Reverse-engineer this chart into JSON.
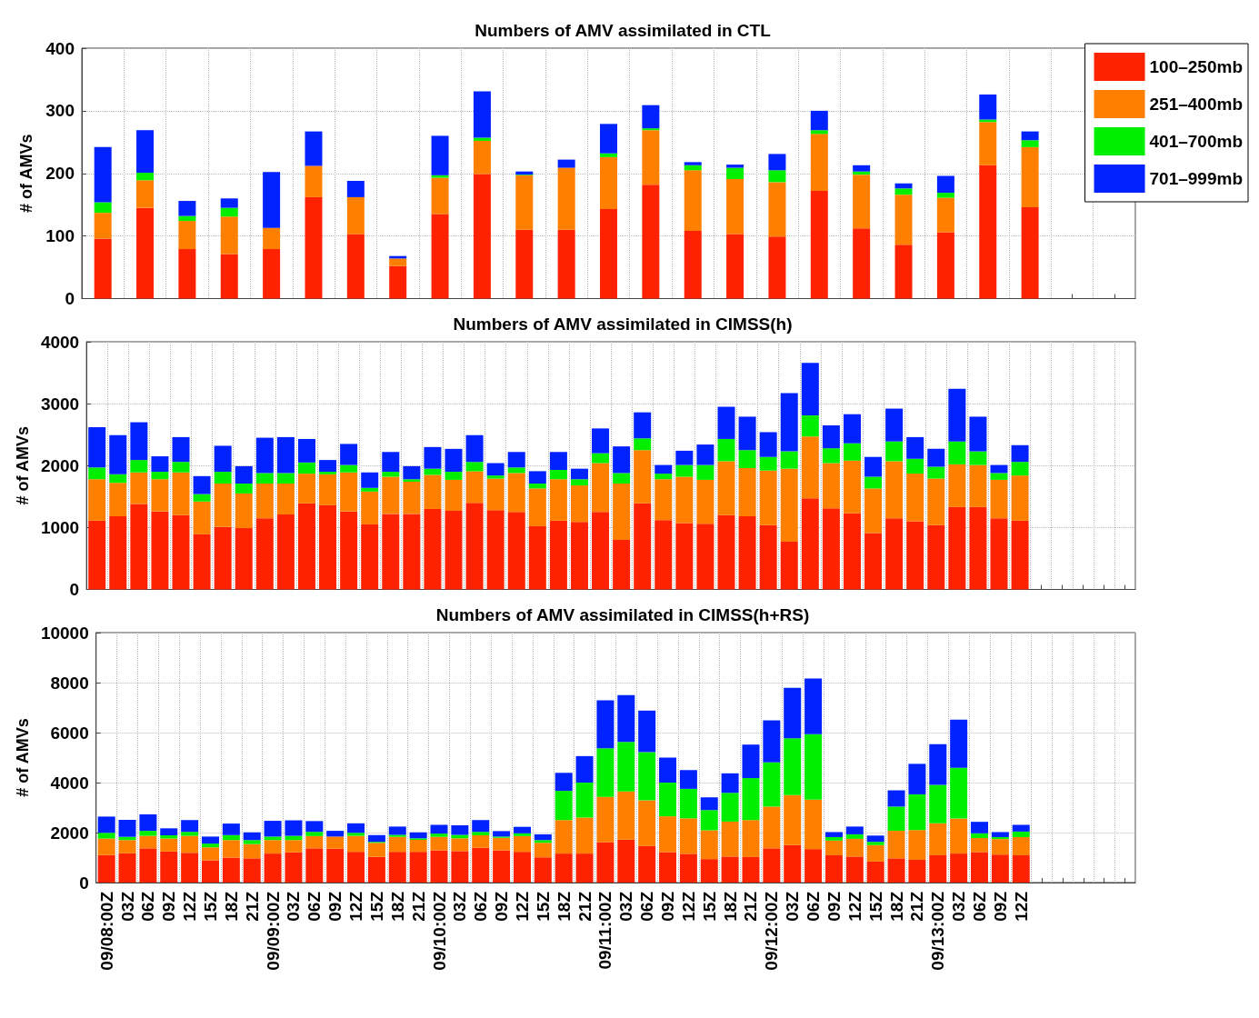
{
  "chart_data": [
    {
      "type": "bar",
      "title": "Numbers of AMV assimilated in CTL",
      "ylabel": "# of AMVs",
      "stacked": true,
      "grid": true,
      "legend": "top right",
      "tick_labels": "y",
      "ylim": [
        0,
        400
      ],
      "yticks": [
        0,
        100,
        200,
        300,
        400
      ],
      "categories": [
        null,
        null,
        null,
        null,
        null,
        null,
        null,
        null,
        null,
        null,
        null,
        null,
        null,
        null,
        null,
        null,
        null,
        null,
        null,
        null,
        null,
        null,
        null
      ],
      "series": [
        {
          "name": "100–250mb",
          "color": "#ff2200",
          "values": [
            96,
            145,
            79,
            71,
            79,
            162,
            103,
            52,
            135,
            199,
            110,
            110,
            143,
            182,
            108,
            103,
            99,
            172,
            112,
            86,
            106,
            213,
            146
          ]
        },
        {
          "name": "251–400mb",
          "color": "#ff7f00",
          "values": [
            41,
            44,
            45,
            60,
            34,
            50,
            59,
            12,
            58,
            53,
            87,
            99,
            83,
            87,
            97,
            88,
            87,
            91,
            86,
            80,
            55,
            69,
            96
          ]
        },
        {
          "name": "401–700mb",
          "color": "#00ee00",
          "values": [
            17,
            12,
            8,
            14,
            0,
            null,
            0,
            0,
            4,
            5,
            1,
            0,
            6,
            3,
            8,
            18,
            19,
            6,
            5,
            10,
            8,
            4,
            11
          ]
        },
        {
          "name": "701–999mb",
          "color": "#0022ff",
          "values": [
            88,
            68,
            24,
            15,
            89,
            55,
            26,
            4,
            63,
            74,
            5,
            13,
            47,
            37,
            5,
            5,
            26,
            31,
            10,
            8,
            27,
            40,
            14
          ]
        }
      ]
    },
    {
      "type": "bar",
      "title": "Numbers of AMV assimilated in CIMSS(h)",
      "ylabel": "# of AMVs",
      "stacked": true,
      "grid": true,
      "tick_labels": "y",
      "ylim": [
        0,
        4000
      ],
      "yticks": [
        0,
        1000,
        2000,
        3000,
        4000
      ],
      "categories": [
        null,
        null,
        null,
        null,
        null,
        null,
        null,
        null,
        null,
        null,
        null,
        null,
        null,
        null,
        null,
        null,
        null,
        null,
        null,
        null,
        null,
        null,
        null,
        null,
        null,
        null,
        null,
        null,
        null,
        null,
        null,
        null,
        null,
        null,
        null,
        null,
        null,
        null,
        null,
        null,
        null,
        null,
        null,
        null,
        null
      ],
      "series": [
        {
          "color": "#ff2200",
          "values": [
            1110,
            1180,
            1380,
            1260,
            1200,
            890,
            1010,
            990,
            1150,
            1210,
            1390,
            1360,
            1260,
            1050,
            1220,
            1220,
            1300,
            1270,
            1400,
            1280,
            1250,
            1020,
            1110,
            1090,
            1250,
            800,
            1390,
            1120,
            1070,
            1060,
            1200,
            1180,
            1040,
            770,
            1470,
            1310,
            1230,
            910,
            1150,
            1100,
            1040,
            1330,
            1330,
            1150,
            1110
          ]
        },
        {
          "color": "#ff7f00",
          "values": [
            670,
            540,
            510,
            520,
            690,
            530,
            700,
            560,
            560,
            500,
            480,
            500,
            630,
            530,
            600,
            520,
            550,
            500,
            510,
            510,
            630,
            610,
            670,
            590,
            790,
            910,
            860,
            660,
            750,
            710,
            870,
            780,
            880,
            1180,
            1000,
            730,
            850,
            720,
            920,
            770,
            750,
            690,
            680,
            620,
            730
          ]
        },
        {
          "color": "#00ee00",
          "values": [
            190,
            140,
            200,
            120,
            170,
            120,
            190,
            160,
            170,
            170,
            180,
            40,
            120,
            60,
            80,
            40,
            100,
            130,
            150,
            50,
            90,
            80,
            150,
            100,
            160,
            170,
            190,
            90,
            190,
            240,
            360,
            290,
            220,
            280,
            340,
            240,
            280,
            190,
            320,
            240,
            190,
            370,
            220,
            110,
            220
          ]
        },
        {
          "color": "#0022ff",
          "values": [
            650,
            630,
            610,
            250,
            400,
            290,
            420,
            280,
            570,
            580,
            380,
            190,
            340,
            250,
            320,
            210,
            350,
            370,
            430,
            200,
            250,
            200,
            290,
            170,
            400,
            430,
            420,
            140,
            230,
            330,
            520,
            540,
            400,
            940,
            850,
            370,
            470,
            320,
            530,
            350,
            290,
            850,
            560,
            130,
            270
          ]
        }
      ]
    },
    {
      "type": "bar",
      "title": "Numbers of AMV assimilated in CIMSS(h+RS)",
      "ylabel": "# of AMVs",
      "stacked": true,
      "grid": true,
      "ylim": [
        0,
        10000
      ],
      "yticks": [
        0,
        2000,
        4000,
        6000,
        8000,
        10000
      ],
      "categories": [
        "09/08:00Z",
        "03Z",
        "06Z",
        "09Z",
        "12Z",
        "15Z",
        "18Z",
        "21Z",
        "09/09:00Z",
        "03Z",
        "06Z",
        "09Z",
        "12Z",
        "15Z",
        "18Z",
        "21Z",
        "09/10:00Z",
        "03Z",
        "06Z",
        "09Z",
        "12Z",
        "15Z",
        "18Z",
        "21Z",
        "09/11:00Z",
        "03Z",
        "06Z",
        "09Z",
        "12Z",
        "15Z",
        "18Z",
        "21Z",
        "09/12:00Z",
        "03Z",
        "06Z",
        "09Z",
        "12Z",
        "15Z",
        "18Z",
        "21Z",
        "09/13:00Z",
        "03Z",
        "06Z",
        "09Z",
        "12Z"
      ],
      "series": [
        {
          "color": "#ff2200",
          "values": [
            1100,
            1170,
            1370,
            1240,
            1190,
            890,
            1000,
            970,
            1160,
            1210,
            1370,
            1360,
            1230,
            1030,
            1230,
            1230,
            1290,
            1260,
            1390,
            1290,
            1230,
            1010,
            1160,
            1160,
            1620,
            1720,
            1460,
            1220,
            1150,
            940,
            1040,
            1020,
            1370,
            1500,
            1340,
            1090,
            1040,
            840,
            970,
            910,
            1090,
            1160,
            1220,
            1120,
            1090
          ]
        },
        {
          "color": "#ff7f00",
          "values": [
            660,
            530,
            500,
            520,
            680,
            520,
            700,
            570,
            540,
            490,
            490,
            480,
            640,
            560,
            600,
            480,
            540,
            510,
            500,
            500,
            630,
            580,
            1340,
            1440,
            1810,
            1930,
            1830,
            1430,
            1420,
            1150,
            1400,
            1480,
            1670,
            2000,
            1980,
            590,
            710,
            660,
            1100,
            1190,
            1280,
            1400,
            560,
            620,
            730
          ]
        },
        {
          "color": "#00ee00",
          "values": [
            230,
            130,
            200,
            130,
            160,
            150,
            200,
            160,
            140,
            170,
            170,
            null,
            120,
            40,
            80,
            60,
            130,
            140,
            140,
            50,
            110,
            110,
            1170,
            1400,
            1940,
            1980,
            1930,
            1350,
            1180,
            810,
            1150,
            1680,
            1770,
            2270,
            2620,
            140,
            180,
            130,
            970,
            1430,
            1540,
            2030,
            190,
            80,
            220
          ]
        },
        {
          "color": "#0022ff",
          "values": [
            650,
            680,
            660,
            280,
            470,
            280,
            460,
            310,
            630,
            620,
            430,
            230,
            380,
            270,
            330,
            240,
            350,
            380,
            470,
            220,
            260,
            230,
            720,
            1060,
            1920,
            1870,
            1660,
            1000,
            750,
            510,
            780,
            1340,
            1680,
            2020,
            2220,
            200,
            310,
            250,
            650,
            1220,
            1630,
            1930,
            460,
            200,
            270
          ]
        }
      ]
    }
  ]
}
